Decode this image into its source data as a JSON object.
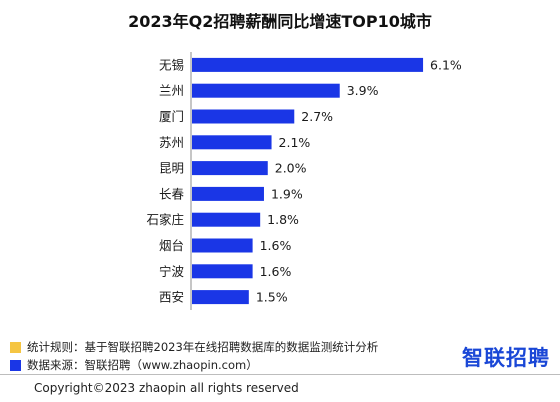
{
  "chart_data": {
    "type": "bar",
    "orientation": "horizontal",
    "title": "2023年Q2招聘薪酬同比增速TOP10城市",
    "categories": [
      "无锡",
      "兰州",
      "厦门",
      "苏州",
      "昆明",
      "长春",
      "石家庄",
      "烟台",
      "宁波",
      "西安"
    ],
    "values": [
      6.1,
      3.9,
      2.7,
      2.1,
      2.0,
      1.9,
      1.8,
      1.6,
      1.6,
      1.5
    ],
    "labels": [
      "6.1%",
      "3.9%",
      "2.7%",
      "2.1%",
      "2.0%",
      "1.9%",
      "1.8%",
      "1.6%",
      "1.6%",
      "1.5%"
    ],
    "xlim": [
      0,
      6.6
    ],
    "bar_color": "#1a36e6",
    "grid": false
  },
  "footer": {
    "rule_label": "统计规则：基于智联招聘2023年在线招聘数据库的数据监测统计分析",
    "source_label": "数据来源：智联招聘（www.zhaopin.com）",
    "rule_color": "#f5c542",
    "source_color": "#1a36e6",
    "logo": "智联招聘",
    "copyright": "Copyright©2023 zhaopin all rights reserved"
  }
}
